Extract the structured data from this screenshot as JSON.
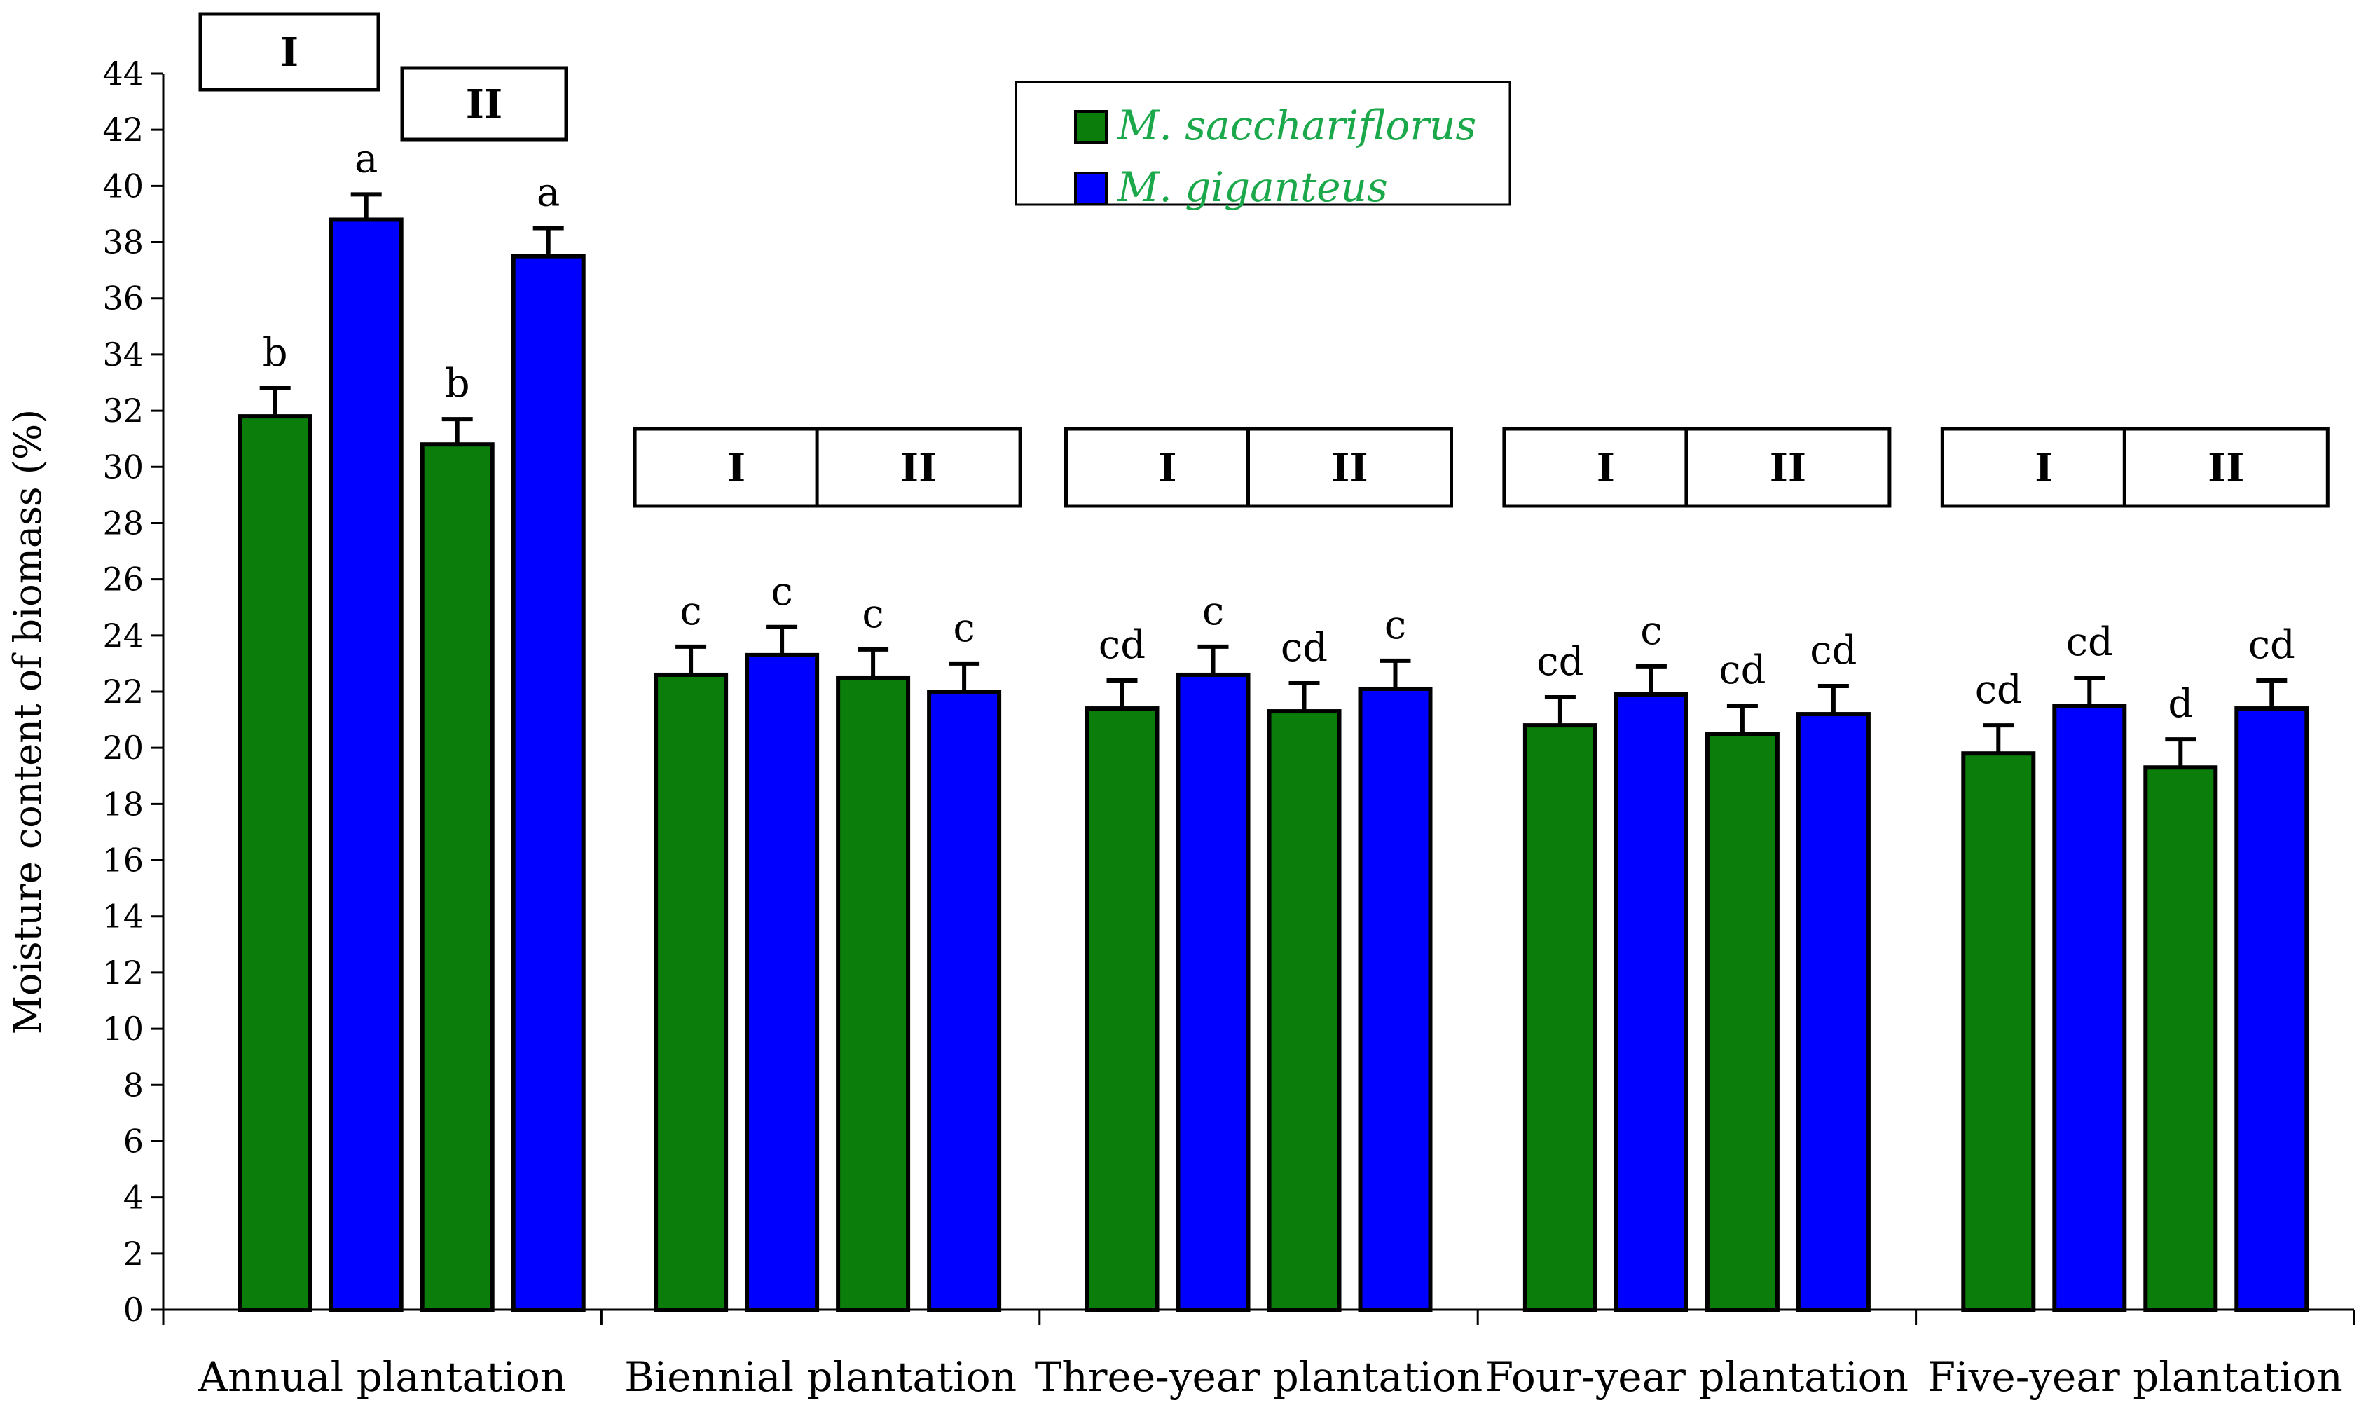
{
  "chart_data": {
    "type": "bar",
    "title": "",
    "xlabel": "",
    "ylabel": "Moisture content of biomass (%)",
    "ylim": [
      0,
      44
    ],
    "ytick_step": 2,
    "grid": false,
    "legend_position": "top-center",
    "categories": [
      "Annual plantation",
      "Biennial plantation",
      "Three-year plantation",
      "Four-year plantation",
      "Five-year plantation"
    ],
    "groups": [
      "I",
      "II"
    ],
    "series": [
      {
        "name": "M. sacchariflorus",
        "color": "#0a7d0a",
        "values": {
          "I": [
            31.8,
            22.6,
            21.4,
            20.8,
            19.8
          ],
          "II": [
            30.8,
            22.5,
            21.3,
            20.5,
            19.3
          ]
        },
        "errors": {
          "I": [
            1.0,
            1.0,
            1.0,
            1.0,
            1.0
          ],
          "II": [
            0.9,
            1.0,
            1.0,
            1.0,
            1.0
          ]
        },
        "labels": {
          "I": [
            "b",
            "c",
            "cd",
            "cd",
            "cd"
          ],
          "II": [
            "b",
            "c",
            "cd",
            "cd",
            "d"
          ]
        }
      },
      {
        "name": "M. giganteus",
        "color": "#0000ff",
        "values": {
          "I": [
            38.8,
            23.3,
            22.6,
            21.9,
            21.5
          ],
          "II": [
            37.5,
            22.0,
            22.1,
            21.2,
            21.4
          ]
        },
        "errors": {
          "I": [
            0.9,
            1.0,
            1.0,
            1.0,
            1.0
          ],
          "II": [
            1.0,
            1.0,
            1.0,
            1.0,
            1.0
          ]
        },
        "labels": {
          "I": [
            "a",
            "c",
            "c",
            "c",
            "cd"
          ],
          "II": [
            "a",
            "c",
            "c",
            "cd",
            "cd"
          ]
        }
      }
    ],
    "legend_text_color": "#1aa84a"
  }
}
